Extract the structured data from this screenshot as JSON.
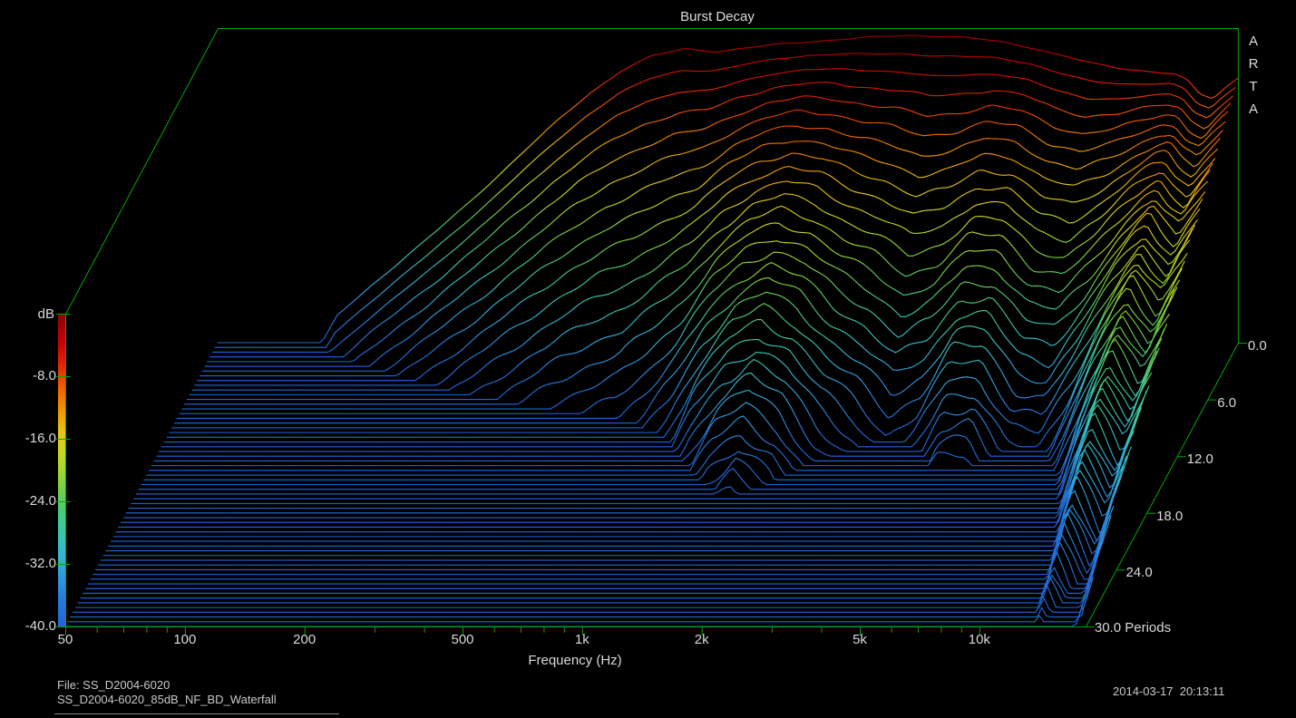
{
  "window": {
    "background": "#000000",
    "text_color": "#d9d9d9",
    "axis_color": "#00a800"
  },
  "header": {
    "title": "Burst Decay"
  },
  "brand": {
    "name": "ARTA",
    "letters": [
      "A",
      "R",
      "T",
      "A"
    ]
  },
  "footer": {
    "file_label": "File: SS_D2004-6020",
    "file_name": "SS_D2004-6020_85dB_NF_BD_Waterfall",
    "datetime": "2014-03-17  20:13:11"
  },
  "chart_data": {
    "type": "waterfall_3d",
    "subtype": "burst_decay",
    "title": "Burst Decay",
    "xlabel": "Frequency (Hz)",
    "x_axis": {
      "scale": "log",
      "min_hz": 50,
      "max_hz": 18500,
      "major_ticks": [
        {
          "hz": 50,
          "label": "50"
        },
        {
          "hz": 100,
          "label": "100"
        },
        {
          "hz": 200,
          "label": "200"
        },
        {
          "hz": 500,
          "label": "500"
        },
        {
          "hz": 1000,
          "label": "1k"
        },
        {
          "hz": 2000,
          "label": "2k"
        },
        {
          "hz": 5000,
          "label": "5k"
        },
        {
          "hz": 10000,
          "label": "10k"
        }
      ],
      "minor_ticks_hz": [
        60,
        70,
        80,
        90,
        300,
        400,
        600,
        700,
        800,
        900,
        3000,
        4000,
        6000,
        7000,
        8000,
        9000
      ]
    },
    "level_axis": {
      "unit_label": "dB",
      "max_db": 0,
      "min_db": -40,
      "tick_step_db": 8,
      "ticks": [
        {
          "db": -8,
          "label": "-8.0"
        },
        {
          "db": -16,
          "label": "-16.0"
        },
        {
          "db": -24,
          "label": "-24.0"
        },
        {
          "db": -32,
          "label": "-32.0"
        },
        {
          "db": -40,
          "label": "-40.0"
        }
      ]
    },
    "depth_axis": {
      "name": "Periods",
      "min": 0,
      "max": 30,
      "ticks": [
        {
          "p": 0,
          "label": "0.0"
        },
        {
          "p": 6,
          "label": "6.0"
        },
        {
          "p": 12,
          "label": "12.0"
        },
        {
          "p": 18,
          "label": "18.0"
        },
        {
          "p": 24,
          "label": "24.0"
        },
        {
          "p": 30,
          "label": "30.0 Periods"
        }
      ]
    },
    "curves": {
      "count": 61,
      "period_step": 0.5,
      "color_by": "level"
    },
    "floor_db": -40,
    "colormap_stops": [
      [
        0.0,
        "#8c0000"
      ],
      [
        0.05,
        "#ae0000"
      ],
      [
        0.1,
        "#cc0400"
      ],
      [
        0.15,
        "#e01c00"
      ],
      [
        0.2,
        "#ea4200"
      ],
      [
        0.26,
        "#f07200"
      ],
      [
        0.32,
        "#eea000"
      ],
      [
        0.38,
        "#e6c414"
      ],
      [
        0.44,
        "#ccd81e"
      ],
      [
        0.5,
        "#a4d82c"
      ],
      [
        0.57,
        "#6ed04a"
      ],
      [
        0.64,
        "#46ca80"
      ],
      [
        0.71,
        "#38c6b2"
      ],
      [
        0.78,
        "#34b4d6"
      ],
      [
        0.85,
        "#2e96e0"
      ],
      [
        0.92,
        "#2878de"
      ],
      [
        1.0,
        "#2264da"
      ]
    ],
    "response": {
      "frequencies_hz": [
        50,
        70,
        85,
        100,
        120,
        145,
        175,
        210,
        250,
        300,
        360,
        430,
        520,
        620,
        750,
        900,
        1080,
        1300,
        1560,
        1870,
        2250,
        2700,
        3240,
        3890,
        4670,
        5600,
        6700,
        8000,
        9600,
        11500,
        12800,
        13800,
        14800,
        16000,
        17200,
        18500
      ],
      "level0_db": [
        -55,
        -48,
        -43,
        -36.5,
        -33,
        -29.5,
        -26,
        -22.5,
        -19,
        -15.2,
        -11.5,
        -8.2,
        -5.2,
        -3.3,
        -2.4,
        -2.8,
        -2.3,
        -1.8,
        -1.5,
        -1.2,
        -0.9,
        -0.7,
        -0.8,
        -1.0,
        -1.5,
        -2.3,
        -3.3,
        -4.3,
        -5.0,
        -5.4,
        -5.6,
        -6.4,
        -8.2,
        -8.8,
        -7.4,
        -6.2
      ],
      "decay_db_per_period": [
        3.0,
        3.0,
        3.1,
        3.2,
        3.3,
        3.4,
        3.55,
        3.7,
        3.9,
        4.1,
        4.3,
        4.45,
        4.6,
        4.65,
        4.3,
        3.7,
        3.0,
        2.55,
        2.35,
        2.6,
        3.1,
        3.45,
        3.9,
        3.6,
        2.9,
        2.8,
        3.3,
        3.3,
        2.6,
        1.8,
        1.4,
        1.1,
        1.15,
        1.3,
        1.15,
        1.0
      ]
    }
  }
}
